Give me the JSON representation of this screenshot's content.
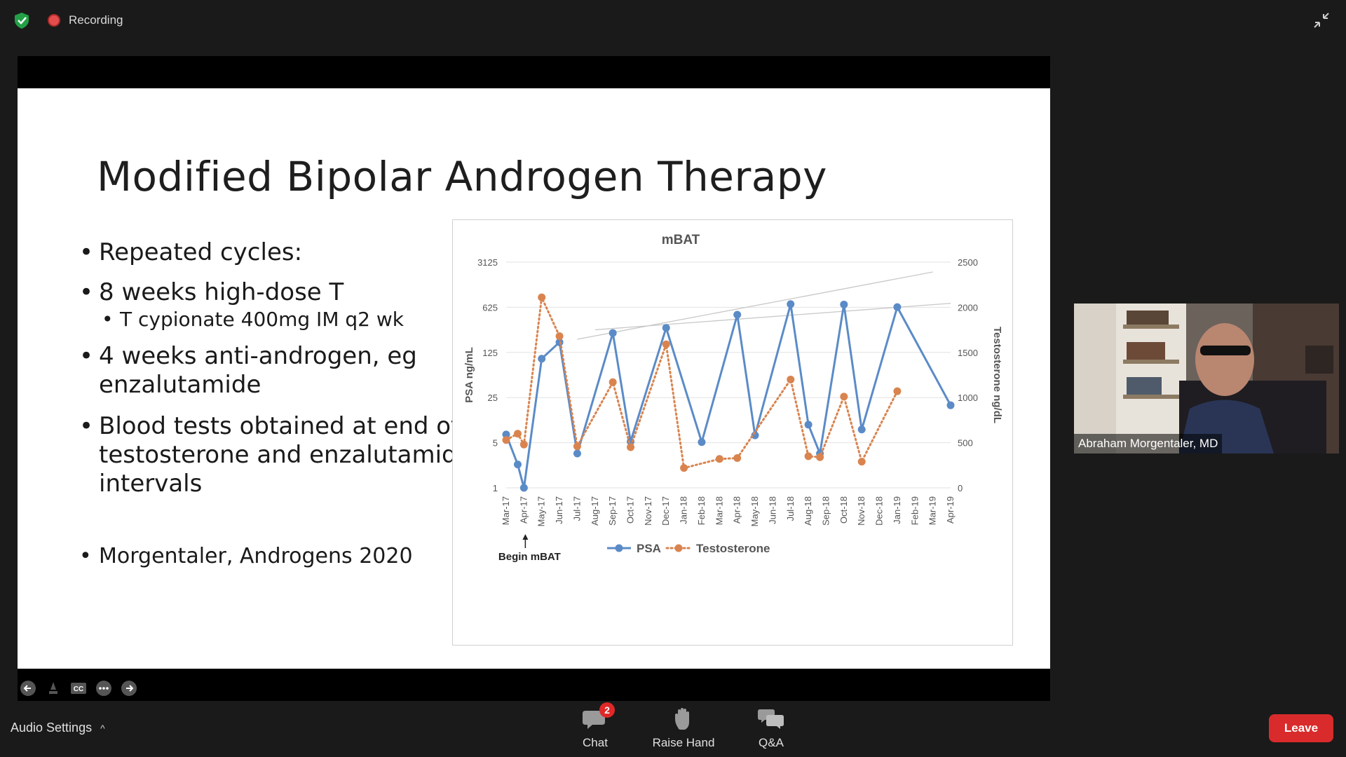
{
  "top": {
    "recording_label": "Recording"
  },
  "slide": {
    "title": "Modified Bipolar Androgen Therapy",
    "bullets": [
      "Repeated cycles:",
      "8 weeks high-dose T",
      "T cypionate 400mg IM q2 wk",
      "4 weeks anti-androgen, eg enzalutamide",
      "Blood tests obtained at end of testosterone and enzalutamide intervals",
      "Morgentaler, Androgens 2020"
    ],
    "annotation": "Begin mBAT"
  },
  "chart_data": {
    "type": "line",
    "title": "mBAT",
    "ylabel": "PSA ng/mL",
    "y2label": "Testosterone ng/dL",
    "categories": [
      "Mar-17",
      "Apr-17",
      "May-17",
      "Jun-17",
      "Jul-17",
      "Aug-17",
      "Sep-17",
      "Oct-17",
      "Nov-17",
      "Dec-17",
      "Jan-18",
      "Feb-18",
      "Mar-18",
      "Apr-18",
      "May-18",
      "Jun-18",
      "Jul-18",
      "Aug-18",
      "Sep-18",
      "Oct-18",
      "Nov-18",
      "Dec-18",
      "Jan-19",
      "Feb-19",
      "Mar-19",
      "Apr-19"
    ],
    "y_ticks": [
      "1",
      "5",
      "25",
      "125",
      "625",
      "3125"
    ],
    "y2_ticks": [
      "0",
      "500",
      "1000",
      "1500",
      "2000",
      "2500"
    ],
    "ylim": [
      1,
      3125
    ],
    "y2lim": [
      0,
      2500
    ],
    "y_scale": "log5",
    "legend_position": "bottom",
    "grid": true,
    "series": [
      {
        "name": "PSA",
        "axis": "left",
        "color": "#5b8bc7",
        "style": "solid",
        "points": [
          {
            "x": "Mar-17",
            "y": 6.7
          },
          {
            "x": "Mar-17",
            "y": 2.3
          },
          {
            "x": "Apr-17",
            "y": 1.0
          },
          {
            "x": "May-17",
            "y": 100
          },
          {
            "x": "Jun-17",
            "y": 180
          },
          {
            "x": "Jul-17",
            "y": 3.4
          },
          {
            "x": "Sep-17",
            "y": 250
          },
          {
            "x": "Oct-17",
            "y": 5.2
          },
          {
            "x": "Dec-17",
            "y": 300
          },
          {
            "x": "Feb-18",
            "y": 5.1
          },
          {
            "x": "Apr-18",
            "y": 480
          },
          {
            "x": "May-18",
            "y": 6.5
          },
          {
            "x": "Jul-18",
            "y": 700
          },
          {
            "x": "Aug-18",
            "y": 9.5
          },
          {
            "x": "Aug-18",
            "y": 3.4
          },
          {
            "x": "Oct-18",
            "y": 690
          },
          {
            "x": "Nov-18",
            "y": 8.0
          },
          {
            "x": "Jan-19",
            "y": 630
          },
          {
            "x": "Apr-19",
            "y": 19
          }
        ]
      },
      {
        "name": "Testosterone",
        "axis": "right",
        "color": "#d9844f",
        "style": "dotted",
        "points": [
          {
            "x": "Mar-17",
            "y": 530
          },
          {
            "x": "Mar-17",
            "y": 600
          },
          {
            "x": "Apr-17",
            "y": 480
          },
          {
            "x": "May-17",
            "y": 2110
          },
          {
            "x": "Jun-17",
            "y": 1680
          },
          {
            "x": "Jul-17",
            "y": 460
          },
          {
            "x": "Sep-17",
            "y": 1170
          },
          {
            "x": "Oct-17",
            "y": 450
          },
          {
            "x": "Dec-17",
            "y": 1590
          },
          {
            "x": "Jan-18",
            "y": 220
          },
          {
            "x": "Mar-18",
            "y": 320
          },
          {
            "x": "Apr-18",
            "y": 330
          },
          {
            "x": "Jul-18",
            "y": 1200
          },
          {
            "x": "Aug-18",
            "y": 350
          },
          {
            "x": "Aug-18",
            "y": 340
          },
          {
            "x": "Oct-18",
            "y": 1010
          },
          {
            "x": "Nov-18",
            "y": 290
          },
          {
            "x": "Jan-19",
            "y": 1070
          }
        ]
      }
    ],
    "trendlines": [
      {
        "series": "PSA",
        "from": {
          "x": "Jul-17",
          "y": 200
        },
        "to": {
          "x": "Mar-19",
          "y": 2200
        }
      },
      {
        "series": "PSA",
        "from": {
          "x": "Aug-17",
          "y": 280
        },
        "to": {
          "x": "Apr-19",
          "y": 720
        }
      }
    ]
  },
  "participant": {
    "name": "Abraham Morgentaler, MD"
  },
  "toolbar": {
    "audio_settings": "Audio Settings",
    "chat": "Chat",
    "chat_badge": "2",
    "raise_hand": "Raise Hand",
    "qa": "Q&A",
    "leave": "Leave"
  }
}
